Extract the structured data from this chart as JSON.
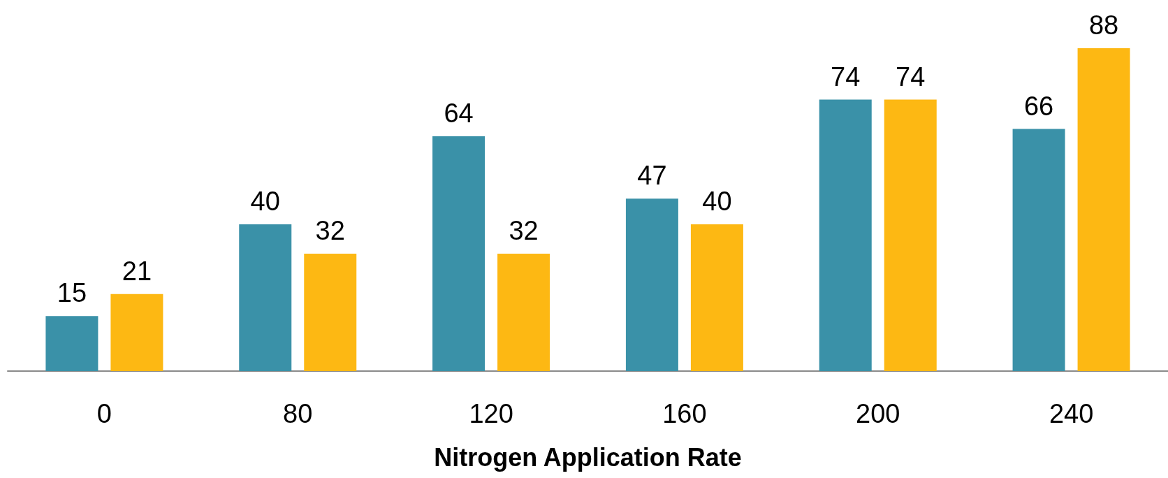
{
  "chart_data": {
    "type": "bar",
    "xlabel": "Nitrogen Application Rate",
    "categories": [
      "0",
      "80",
      "120",
      "160",
      "200",
      "240"
    ],
    "series": [
      {
        "color": "#3a91a8",
        "values": [
          15,
          40,
          64,
          47,
          74,
          66
        ]
      },
      {
        "color": "#fdb813",
        "values": [
          21,
          32,
          32,
          40,
          74,
          88
        ]
      }
    ],
    "data_labels": true
  }
}
